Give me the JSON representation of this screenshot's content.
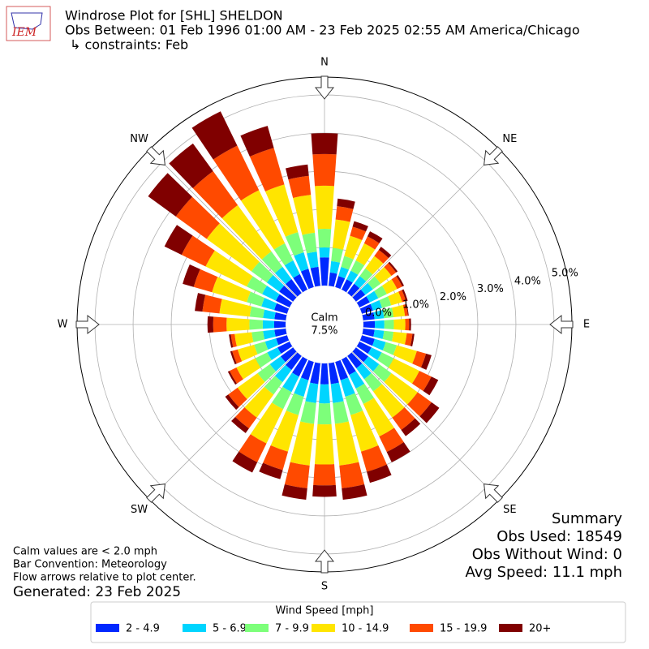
{
  "chart_data": {
    "type": "windrose",
    "title": "Windrose Plot for [SHL] SHELDON",
    "subtitle": "Obs Between: 01 Feb 1996 01:00 AM - 23 Feb 2025 02:55 AM America/Chicago",
    "constraints": "↳ constraints: Feb",
    "logo_text": "IEM",
    "x": [
      0,
      10,
      20,
      30,
      40,
      50,
      60,
      70,
      80,
      90,
      100,
      110,
      120,
      130,
      140,
      150,
      160,
      170,
      180,
      190,
      200,
      210,
      220,
      230,
      240,
      250,
      260,
      270,
      280,
      290,
      300,
      310,
      320,
      330,
      340,
      350
    ],
    "xticks": [
      {
        "value": 0,
        "label": "N"
      },
      {
        "value": 45,
        "label": "NE"
      },
      {
        "value": 90,
        "label": "E"
      },
      {
        "value": 135,
        "label": "SE"
      },
      {
        "value": 180,
        "label": "S"
      },
      {
        "value": 225,
        "label": "SW"
      },
      {
        "value": 270,
        "label": "W"
      },
      {
        "value": 315,
        "label": "NW"
      }
    ],
    "ylim": [
      0,
      5.47
    ],
    "yticks": [
      {
        "value": 0,
        "label": "0.0%"
      },
      {
        "value": 1,
        "label": "1.0%"
      },
      {
        "value": 2,
        "label": "2.0%"
      },
      {
        "value": 3,
        "label": "3.0%"
      },
      {
        "value": 4,
        "label": "4.0%"
      },
      {
        "value": 5,
        "label": "5.0%"
      }
    ],
    "grid": true,
    "calm": {
      "label": "Calm",
      "value": 7.5,
      "value_label": "7.5%"
    },
    "legend_title": "Wind Speed [mph]",
    "legend_position": "bottom",
    "series": [
      {
        "name": "2 - 4.9",
        "color": "#0028ff",
        "values": [
          0.74,
          0.35,
          0.3,
          0.3,
          0.3,
          0.3,
          0.3,
          0.3,
          0.3,
          0.3,
          0.3,
          0.35,
          0.35,
          0.4,
          0.4,
          0.45,
          0.5,
          0.55,
          0.55,
          0.55,
          0.5,
          0.5,
          0.45,
          0.4,
          0.35,
          0.3,
          0.3,
          0.3,
          0.3,
          0.35,
          0.4,
          0.45,
          0.45,
          0.45,
          0.5,
          0.5
        ]
      },
      {
        "name": "5 - 6.9",
        "color": "#00d5ff",
        "values": [
          0.26,
          0.3,
          0.25,
          0.25,
          0.25,
          0.25,
          0.25,
          0.25,
          0.25,
          0.25,
          0.25,
          0.3,
          0.3,
          0.35,
          0.35,
          0.4,
          0.45,
          0.5,
          0.5,
          0.5,
          0.45,
          0.45,
          0.4,
          0.35,
          0.3,
          0.3,
          0.3,
          0.3,
          0.3,
          0.35,
          0.4,
          0.4,
          0.4,
          0.4,
          0.45,
          0.4
        ]
      },
      {
        "name": "7 - 9.9",
        "color": "#7dff7a",
        "values": [
          0.49,
          0.35,
          0.3,
          0.3,
          0.25,
          0.25,
          0.25,
          0.25,
          0.25,
          0.25,
          0.25,
          0.3,
          0.35,
          0.4,
          0.4,
          0.45,
          0.5,
          0.55,
          0.55,
          0.55,
          0.5,
          0.5,
          0.4,
          0.4,
          0.35,
          0.3,
          0.3,
          0.35,
          0.35,
          0.4,
          0.45,
          0.5,
          0.5,
          0.5,
          0.55,
          0.5
        ]
      },
      {
        "name": "10 - 14.9",
        "color": "#ffe500",
        "values": [
          1.13,
          0.75,
          0.55,
          0.5,
          0.4,
          0.35,
          0.3,
          0.3,
          0.3,
          0.3,
          0.35,
          0.55,
          0.75,
          0.85,
          0.85,
          0.95,
          1.0,
          1.1,
          1.05,
          1.1,
          1.0,
          1.0,
          0.75,
          0.65,
          0.55,
          0.45,
          0.45,
          0.6,
          0.8,
          0.95,
          1.2,
          1.45,
          1.5,
          1.55,
          1.3,
          1.0
        ]
      },
      {
        "name": "15 - 19.9",
        "color": "#ff4a00",
        "values": [
          0.83,
          0.35,
          0.25,
          0.2,
          0.2,
          0.15,
          0.15,
          0.1,
          0.08,
          0.1,
          0.15,
          0.25,
          0.35,
          0.45,
          0.4,
          0.45,
          0.55,
          0.6,
          0.55,
          0.6,
          0.5,
          0.55,
          0.35,
          0.3,
          0.2,
          0.15,
          0.1,
          0.35,
          0.45,
          0.5,
          0.7,
          1.0,
          1.1,
          1.3,
          1.0,
          0.5
        ]
      },
      {
        "name": "20+",
        "color": "#800000",
        "values": [
          0.55,
          0.2,
          0.15,
          0.15,
          0.1,
          0.05,
          0.05,
          0.05,
          0.02,
          0.05,
          0.05,
          0.15,
          0.2,
          0.25,
          0.2,
          0.3,
          0.3,
          0.3,
          0.3,
          0.3,
          0.25,
          0.3,
          0.15,
          0.1,
          0.05,
          0.05,
          0.05,
          0.15,
          0.2,
          0.3,
          0.5,
          0.9,
          0.9,
          1.0,
          0.6,
          0.3
        ]
      }
    ],
    "notes": [
      "Calm values are < 2.0 mph",
      "Bar Convention: Meteorology",
      "Flow arrows relative to plot center."
    ],
    "generated": "Generated: 23 Feb 2025",
    "summary": [
      "Summary",
      "Obs Used: 18549",
      "Obs Without Wind: 0",
      "Avg Speed: 11.1 mph"
    ]
  }
}
